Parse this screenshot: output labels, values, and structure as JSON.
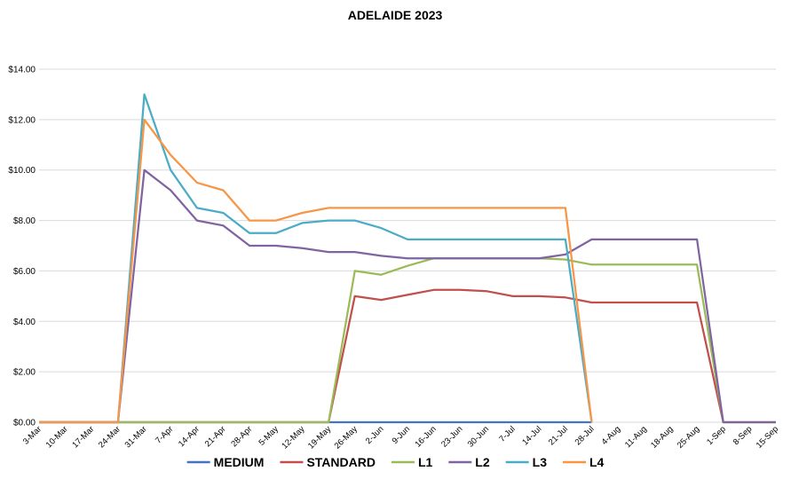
{
  "chart_data": {
    "type": "line",
    "title": "ADELAIDE 2023",
    "xlabel": "",
    "ylabel": "",
    "x": [
      "3-Mar",
      "10-Mar",
      "17-Mar",
      "24-Mar",
      "31-Mar",
      "7-Apr",
      "14-Apr",
      "21-Apr",
      "28-Apr",
      "5-May",
      "12-May",
      "19-May",
      "26-May",
      "2-Jun",
      "9-Jun",
      "16-Jun",
      "23-Jun",
      "30-Jun",
      "7-Jul",
      "14-Jul",
      "21-Jul",
      "28-Jul",
      "4-Aug",
      "11-Aug",
      "18-Aug",
      "25-Aug",
      "1-Sep",
      "8-Sep",
      "15-Sep"
    ],
    "yticks": [
      "$0.00",
      "$2.00",
      "$4.00",
      "$6.00",
      "$8.00",
      "$10.00",
      "$12.00",
      "$14.00"
    ],
    "ylim": [
      0,
      14
    ],
    "grid": true,
    "legend_position": "bottom",
    "series": [
      {
        "name": "MEDIUM",
        "color": "#4472C4",
        "points": [
          [
            0,
            0
          ],
          [
            1,
            0
          ],
          [
            2,
            0
          ],
          [
            3,
            0
          ],
          [
            4,
            0
          ],
          [
            5,
            0
          ],
          [
            6,
            0
          ],
          [
            7,
            0
          ],
          [
            8,
            0
          ],
          [
            9,
            0
          ],
          [
            10,
            0
          ],
          [
            11,
            0
          ],
          [
            12,
            0
          ],
          [
            13,
            0
          ],
          [
            14,
            0
          ],
          [
            15,
            0
          ],
          [
            16,
            0
          ],
          [
            17,
            0
          ],
          [
            18,
            0
          ],
          [
            19,
            0
          ],
          [
            20,
            0
          ],
          [
            21,
            0
          ]
        ]
      },
      {
        "name": "STANDARD",
        "color": "#C0504D",
        "points": [
          [
            0,
            0
          ],
          [
            1,
            0
          ],
          [
            2,
            0
          ],
          [
            3,
            0
          ],
          [
            4,
            0
          ],
          [
            5,
            0
          ],
          [
            6,
            0
          ],
          [
            7,
            0
          ],
          [
            8,
            0
          ],
          [
            9,
            0
          ],
          [
            10,
            0
          ],
          [
            11,
            0
          ],
          [
            12,
            5.0
          ],
          [
            13,
            4.85
          ],
          [
            14,
            5.05
          ],
          [
            15,
            5.25
          ],
          [
            16,
            5.25
          ],
          [
            17,
            5.2
          ],
          [
            18,
            5.0
          ],
          [
            19,
            5.0
          ],
          [
            20,
            4.95
          ],
          [
            21,
            4.75
          ],
          [
            22,
            4.75
          ],
          [
            23,
            4.75
          ],
          [
            24,
            4.75
          ],
          [
            25,
            4.75
          ],
          [
            26,
            0
          ],
          [
            27,
            0
          ],
          [
            28,
            0
          ]
        ]
      },
      {
        "name": "L1",
        "color": "#9BBB59",
        "points": [
          [
            0,
            0
          ],
          [
            1,
            0
          ],
          [
            2,
            0
          ],
          [
            3,
            0
          ],
          [
            4,
            0
          ],
          [
            5,
            0
          ],
          [
            6,
            0
          ],
          [
            7,
            0
          ],
          [
            8,
            0
          ],
          [
            9,
            0
          ],
          [
            10,
            0
          ],
          [
            11,
            0
          ],
          [
            12,
            6.0
          ],
          [
            13,
            5.85
          ],
          [
            14,
            6.2
          ],
          [
            15,
            6.5
          ],
          [
            16,
            6.5
          ],
          [
            17,
            6.5
          ],
          [
            18,
            6.5
          ],
          [
            19,
            6.5
          ],
          [
            20,
            6.45
          ],
          [
            21,
            6.25
          ],
          [
            22,
            6.25
          ],
          [
            23,
            6.25
          ],
          [
            24,
            6.25
          ],
          [
            25,
            6.25
          ],
          [
            26,
            0
          ],
          [
            27,
            0
          ],
          [
            28,
            0
          ]
        ]
      },
      {
        "name": "L2",
        "color": "#8064A2",
        "points": [
          [
            0,
            0
          ],
          [
            1,
            0
          ],
          [
            2,
            0
          ],
          [
            3,
            0
          ],
          [
            4,
            10.0
          ],
          [
            5,
            9.2
          ],
          [
            6,
            8.0
          ],
          [
            7,
            7.8
          ],
          [
            8,
            7.0
          ],
          [
            9,
            7.0
          ],
          [
            10,
            6.9
          ],
          [
            11,
            6.75
          ],
          [
            12,
            6.75
          ],
          [
            13,
            6.6
          ],
          [
            14,
            6.5
          ],
          [
            15,
            6.5
          ],
          [
            16,
            6.5
          ],
          [
            17,
            6.5
          ],
          [
            18,
            6.5
          ],
          [
            19,
            6.5
          ],
          [
            20,
            6.65
          ],
          [
            21,
            7.25
          ],
          [
            22,
            7.25
          ],
          [
            23,
            7.25
          ],
          [
            24,
            7.25
          ],
          [
            25,
            7.25
          ],
          [
            26,
            0
          ],
          [
            27,
            0
          ],
          [
            28,
            0
          ]
        ]
      },
      {
        "name": "L3",
        "color": "#4BACC6",
        "points": [
          [
            0,
            0
          ],
          [
            1,
            0
          ],
          [
            2,
            0
          ],
          [
            3,
            0
          ],
          [
            4,
            13.0
          ],
          [
            5,
            10.0
          ],
          [
            6,
            8.5
          ],
          [
            7,
            8.3
          ],
          [
            8,
            7.5
          ],
          [
            9,
            7.5
          ],
          [
            10,
            7.9
          ],
          [
            11,
            8.0
          ],
          [
            12,
            8.0
          ],
          [
            13,
            7.7
          ],
          [
            14,
            7.25
          ],
          [
            15,
            7.25
          ],
          [
            16,
            7.25
          ],
          [
            17,
            7.25
          ],
          [
            18,
            7.25
          ],
          [
            19,
            7.25
          ],
          [
            20,
            7.25
          ],
          [
            21,
            0
          ]
        ]
      },
      {
        "name": "L4",
        "color": "#F79646",
        "points": [
          [
            0,
            0
          ],
          [
            1,
            0
          ],
          [
            2,
            0
          ],
          [
            3,
            0
          ],
          [
            4,
            12.0
          ],
          [
            5,
            10.6
          ],
          [
            6,
            9.5
          ],
          [
            7,
            9.2
          ],
          [
            8,
            8.0
          ],
          [
            9,
            8.0
          ],
          [
            10,
            8.3
          ],
          [
            11,
            8.5
          ],
          [
            12,
            8.5
          ],
          [
            13,
            8.5
          ],
          [
            14,
            8.5
          ],
          [
            15,
            8.5
          ],
          [
            16,
            8.5
          ],
          [
            17,
            8.5
          ],
          [
            18,
            8.5
          ],
          [
            19,
            8.5
          ],
          [
            20,
            8.5
          ],
          [
            21,
            0
          ]
        ]
      }
    ]
  }
}
